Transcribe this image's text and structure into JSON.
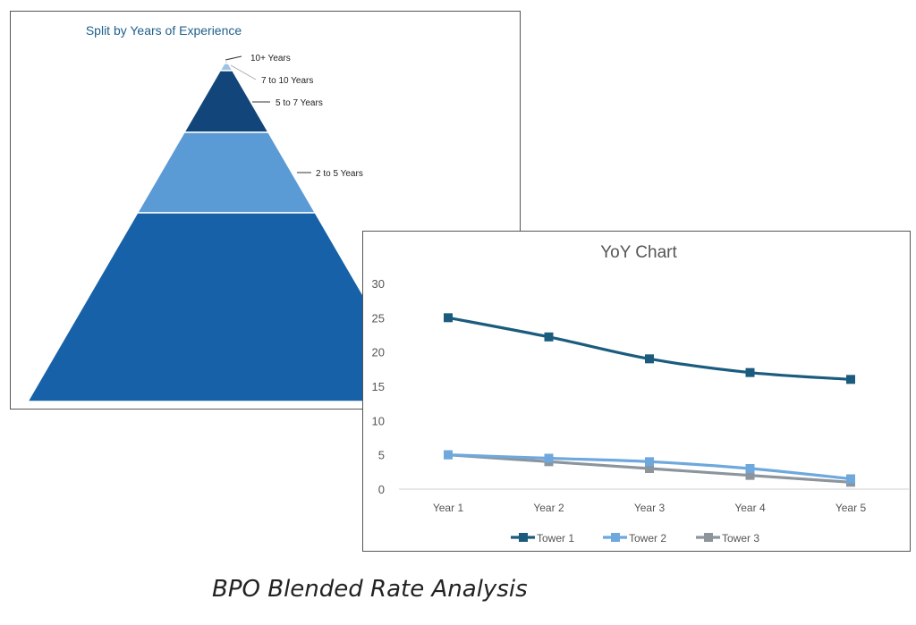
{
  "caption": "BPO Blended Rate Analysis",
  "chart_data": [
    {
      "type": "pyramid",
      "title": "Split by Years of Experience",
      "segments": [
        {
          "label": "10+ Years",
          "color": "#9dc3e6"
        },
        {
          "label": "7 to 10 Years",
          "color": "#9dc3e6"
        },
        {
          "label": "5 to 7 Years",
          "color": "#12467a"
        },
        {
          "label": "2 to 5 Years",
          "color": "#5b9bd5"
        },
        {
          "label": "",
          "color": "#1661a8"
        }
      ]
    },
    {
      "type": "line",
      "title": "YoY Chart",
      "categories": [
        "Year 1",
        "Year 2",
        "Year 3",
        "Year 4",
        "Year 5"
      ],
      "ylim": [
        0,
        30
      ],
      "yticks": [
        "0",
        "5",
        "10",
        "15",
        "20",
        "25",
        "30"
      ],
      "legend_position": "bottom",
      "series": [
        {
          "name": "Tower 1",
          "color": "#1b5c7e",
          "values": [
            25,
            22.2,
            19,
            17,
            16
          ]
        },
        {
          "name": "Tower 2",
          "color": "#6fa8dc",
          "values": [
            5,
            4.5,
            4,
            3,
            1.5
          ]
        },
        {
          "name": "Tower 3",
          "color": "#8c959c",
          "values": [
            5,
            4,
            3,
            2,
            1
          ]
        }
      ]
    }
  ]
}
